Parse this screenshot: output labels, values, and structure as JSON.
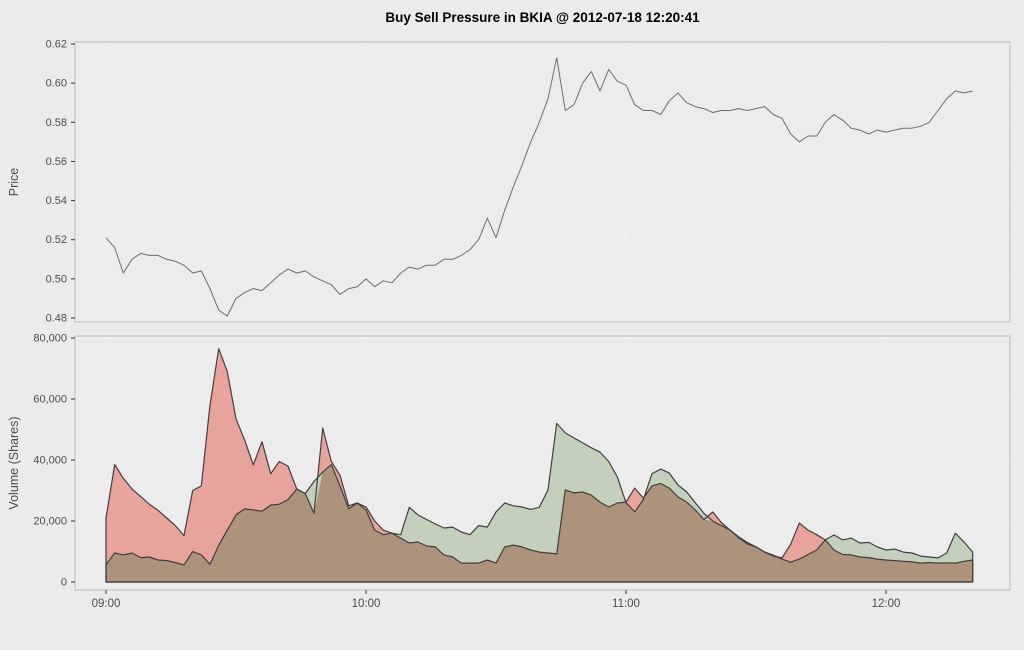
{
  "title": "Buy Sell Pressure in BKIA @ 2012-07-18 12:20:41",
  "colors": {
    "background": "#ebebeb",
    "panel_fill": "#ececec",
    "panel_border": "#bdbdbd",
    "gridline": "#fafafa",
    "tick": "#333333",
    "tick_label": "#4d4d4d",
    "price_line": "#6e6e6e",
    "area_outline": "#3f3f3f",
    "sell_fill": "#e8a49c",
    "buy_fill": "#c5d0bc",
    "overlap_fill": "#ad937b"
  },
  "x_axis": {
    "tick_labels": [
      "09:00",
      "10:00",
      "11:00",
      "12:00"
    ],
    "tick_minutes": [
      0,
      60,
      120,
      180
    ],
    "start_label": "09:00",
    "end_minute": 200,
    "step_minutes": 2
  },
  "price_panel": {
    "ylabel": "Price",
    "ytick_labels": [
      "0.48",
      "0.50",
      "0.52",
      "0.54",
      "0.56",
      "0.58",
      "0.60",
      "0.62"
    ],
    "yticks": [
      0.48,
      0.5,
      0.52,
      0.54,
      0.56,
      0.58,
      0.6,
      0.62
    ]
  },
  "volume_panel": {
    "ylabel": "Volume (Shares)",
    "ytick_labels": [
      "0",
      "20,000",
      "40,000",
      "60,000",
      "80,000"
    ],
    "yticks": [
      0,
      20000,
      40000,
      60000,
      80000
    ]
  },
  "chart_data": [
    {
      "type": "line",
      "title": "Buy Sell Pressure in BKIA @ 2012-07-18 12:20:41",
      "xlabel": "",
      "ylabel": "Price",
      "x_start": "09:00",
      "x_end": "12:20",
      "x_step_minutes": 2,
      "x_tick_labels": [
        "09:00",
        "10:00",
        "11:00",
        "12:00"
      ],
      "ylim": [
        0.48,
        0.62
      ],
      "grid": "dotted",
      "legend": "none",
      "series": [
        {
          "name": "price",
          "values": [
            0.521,
            0.516,
            0.503,
            0.51,
            0.513,
            0.512,
            0.512,
            0.51,
            0.509,
            0.507,
            0.503,
            0.504,
            0.495,
            0.484,
            0.481,
            0.49,
            0.493,
            0.495,
            0.494,
            0.498,
            0.502,
            0.505,
            0.503,
            0.504,
            0.501,
            0.499,
            0.497,
            0.492,
            0.495,
            0.496,
            0.5,
            0.496,
            0.499,
            0.498,
            0.503,
            0.506,
            0.505,
            0.507,
            0.507,
            0.51,
            0.51,
            0.512,
            0.515,
            0.52,
            0.531,
            0.521,
            0.535,
            0.547,
            0.558,
            0.57,
            0.58,
            0.592,
            0.613,
            0.586,
            0.589,
            0.6,
            0.606,
            0.596,
            0.607,
            0.601,
            0.599,
            0.589,
            0.586,
            0.586,
            0.584,
            0.591,
            0.595,
            0.59,
            0.588,
            0.587,
            0.585,
            0.586,
            0.586,
            0.587,
            0.586,
            0.587,
            0.588,
            0.584,
            0.582,
            0.574,
            0.57,
            0.573,
            0.573,
            0.58,
            0.584,
            0.581,
            0.577,
            0.576,
            0.574,
            0.576,
            0.575,
            0.576,
            0.577,
            0.577,
            0.578,
            0.58,
            0.586,
            0.592,
            0.596,
            0.595,
            0.596
          ]
        }
      ]
    },
    {
      "type": "area",
      "xlabel": "",
      "ylabel": "Volume (Shares)",
      "x_start": "09:00",
      "x_end": "12:20",
      "x_step_minutes": 2,
      "x_tick_labels": [
        "09:00",
        "10:00",
        "11:00",
        "12:00"
      ],
      "ylim": [
        0,
        80000
      ],
      "grid": "dotted",
      "legend": "none",
      "series": [
        {
          "name": "sell_volume",
          "color": "#e8a49c",
          "values": [
            21000,
            38500,
            34000,
            30500,
            28000,
            25500,
            23500,
            21000,
            18500,
            15200,
            30000,
            31500,
            58000,
            76500,
            69000,
            53500,
            46500,
            38400,
            46000,
            35500,
            39500,
            38000,
            30500,
            29000,
            22500,
            50500,
            39500,
            35000,
            25000,
            25900,
            24600,
            20000,
            17000,
            16000,
            14400,
            12800,
            13100,
            11800,
            11500,
            8900,
            8200,
            6200,
            6200,
            6200,
            7200,
            6200,
            11500,
            12100,
            11500,
            10500,
            9800,
            9500,
            9200,
            30200,
            29200,
            29500,
            28500,
            26200,
            24600,
            25900,
            26200,
            30800,
            27500,
            31500,
            32300,
            30800,
            27900,
            26200,
            23600,
            20500,
            23000,
            19500,
            17000,
            14800,
            13000,
            11500,
            9800,
            8500,
            7900,
            12400,
            19300,
            17000,
            15500,
            13800,
            10500,
            9000,
            8900,
            8200,
            8000,
            7500,
            7200,
            7000,
            6800,
            6600,
            6200,
            6400,
            6200,
            6300,
            6200,
            6800,
            7200
          ]
        },
        {
          "name": "buy_volume",
          "color": "#c5d0bc",
          "values": [
            5600,
            9500,
            8900,
            9500,
            8000,
            8200,
            7200,
            7000,
            6400,
            5600,
            10000,
            8900,
            5800,
            12000,
            17000,
            22000,
            24000,
            23600,
            23200,
            25200,
            25500,
            27000,
            30500,
            29000,
            33000,
            36000,
            38500,
            31500,
            24000,
            25900,
            23600,
            17000,
            15500,
            16000,
            15500,
            24500,
            22000,
            20500,
            19000,
            17700,
            18000,
            16400,
            15500,
            18500,
            18000,
            23000,
            25900,
            25000,
            24600,
            23800,
            24500,
            30200,
            52000,
            48900,
            47200,
            45600,
            44000,
            42600,
            39500,
            34500,
            26000,
            23000,
            27000,
            35500,
            37000,
            35700,
            31800,
            29500,
            26000,
            22500,
            20000,
            18500,
            17000,
            14500,
            12500,
            11500,
            9800,
            8800,
            7500,
            6500,
            7500,
            9000,
            10500,
            13800,
            15400,
            13800,
            14400,
            12800,
            13000,
            11500,
            10500,
            10800,
            9800,
            9500,
            8500,
            8200,
            7900,
            9500,
            16000,
            13100,
            9800
          ]
        }
      ],
      "overlap_color": "#ad937b"
    }
  ]
}
